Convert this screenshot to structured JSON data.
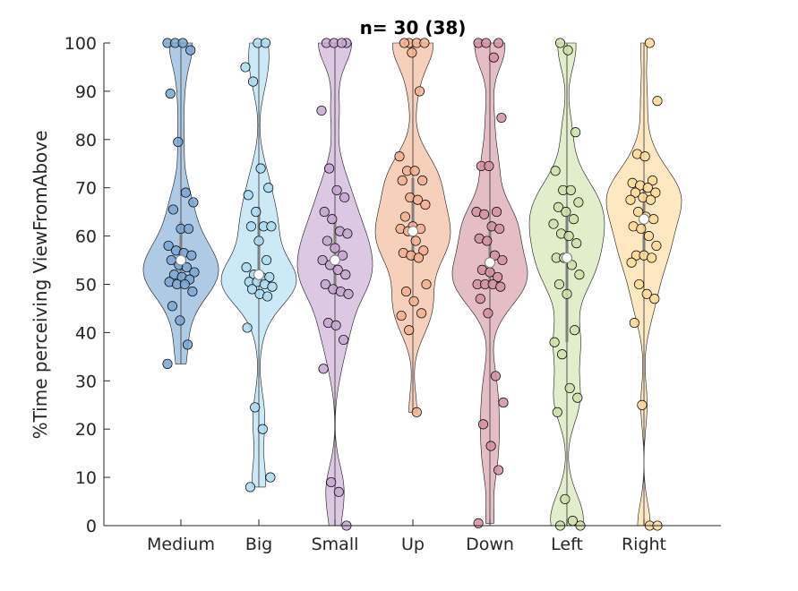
{
  "chart_data": {
    "type": "violin",
    "title": "n= 30 (38)",
    "xlabel": "",
    "ylabel": "%Time perceiving ViewFromAbove",
    "ylim": [
      0,
      100
    ],
    "yticks": [
      0,
      10,
      20,
      30,
      40,
      50,
      60,
      70,
      80,
      90,
      100
    ],
    "categories": [
      "Medium",
      "Big",
      "Small",
      "Up",
      "Down",
      "Left",
      "Right"
    ],
    "colors": [
      "#7aa6d2",
      "#aadaf1",
      "#c6a4d0",
      "#f2b08f",
      "#d2919f",
      "#cde1a9",
      "#fdd997"
    ],
    "grid": false,
    "series": [
      {
        "category": "Medium",
        "median": 55,
        "q1": 51,
        "q3": 63,
        "points": [
          100,
          100,
          100,
          98.5,
          89.5,
          79.5,
          69,
          67,
          65.5,
          61.5,
          61.5,
          58,
          57,
          56.5,
          56,
          55,
          54,
          53.5,
          52.5,
          52,
          51.5,
          51,
          50.5,
          50,
          50,
          48.5,
          45.5,
          42.5,
          37.5,
          33.5
        ]
      },
      {
        "category": "Big",
        "median": 52,
        "q1": 50,
        "q3": 66,
        "points": [
          100,
          100,
          95,
          92,
          74,
          70,
          68.5,
          65,
          62,
          62,
          62,
          59,
          55,
          53.5,
          52,
          51.5,
          51.5,
          50.5,
          50.5,
          50,
          49.5,
          49,
          48,
          47.5,
          41,
          24.5,
          20,
          10,
          8
        ]
      },
      {
        "category": "Small",
        "median": 55,
        "q1": 48,
        "q3": 63,
        "points": [
          100,
          100,
          100,
          100,
          86,
          74,
          69.5,
          68,
          65,
          63.5,
          61,
          60.5,
          59,
          57.5,
          56,
          55,
          54,
          53,
          52,
          50,
          49,
          48.5,
          48,
          42,
          41.5,
          38.5,
          32.5,
          9,
          7,
          0
        ]
      },
      {
        "category": "Up",
        "median": 61,
        "q1": 55,
        "q3": 72,
        "points": [
          100,
          100,
          100,
          100,
          98,
          90,
          76.5,
          73.5,
          73.5,
          71.5,
          71.5,
          68,
          67.5,
          66.5,
          64,
          62,
          61.5,
          61.5,
          61,
          59,
          57,
          56.5,
          56,
          55.5,
          50,
          48.5,
          46.5,
          44,
          43.5,
          40.5,
          23.5
        ]
      },
      {
        "category": "Down",
        "median": 54.5,
        "q1": 50,
        "q3": 63,
        "points": [
          100,
          100,
          100,
          97,
          84.5,
          74.5,
          74.5,
          65,
          65,
          64.5,
          62,
          61.5,
          59.5,
          59,
          56,
          55,
          53,
          52.5,
          51.5,
          50,
          50,
          50,
          49.5,
          47,
          44,
          31,
          25.5,
          21,
          16.5,
          11.5,
          0.5
        ]
      },
      {
        "category": "Left",
        "median": 55.5,
        "q1": 38,
        "q3": 66,
        "points": [
          100,
          98.5,
          81.5,
          73.5,
          69.5,
          69.5,
          67,
          66,
          65,
          63.5,
          62.5,
          60.5,
          60,
          58.5,
          55.5,
          55.5,
          54,
          52,
          50,
          48,
          40.5,
          38,
          35.5,
          28.5,
          26.5,
          23.5,
          5.5,
          1,
          0,
          0
        ]
      },
      {
        "category": "Right",
        "median": 63.5,
        "q1": 56,
        "q3": 71,
        "points": [
          100,
          88,
          77,
          76.5,
          71.5,
          71,
          70.5,
          70,
          69,
          69,
          68,
          67.5,
          67.5,
          65,
          64,
          63.5,
          62,
          61.5,
          60,
          58,
          56,
          56,
          55.5,
          54.5,
          50,
          48,
          47,
          42,
          25,
          0,
          0
        ]
      }
    ]
  }
}
